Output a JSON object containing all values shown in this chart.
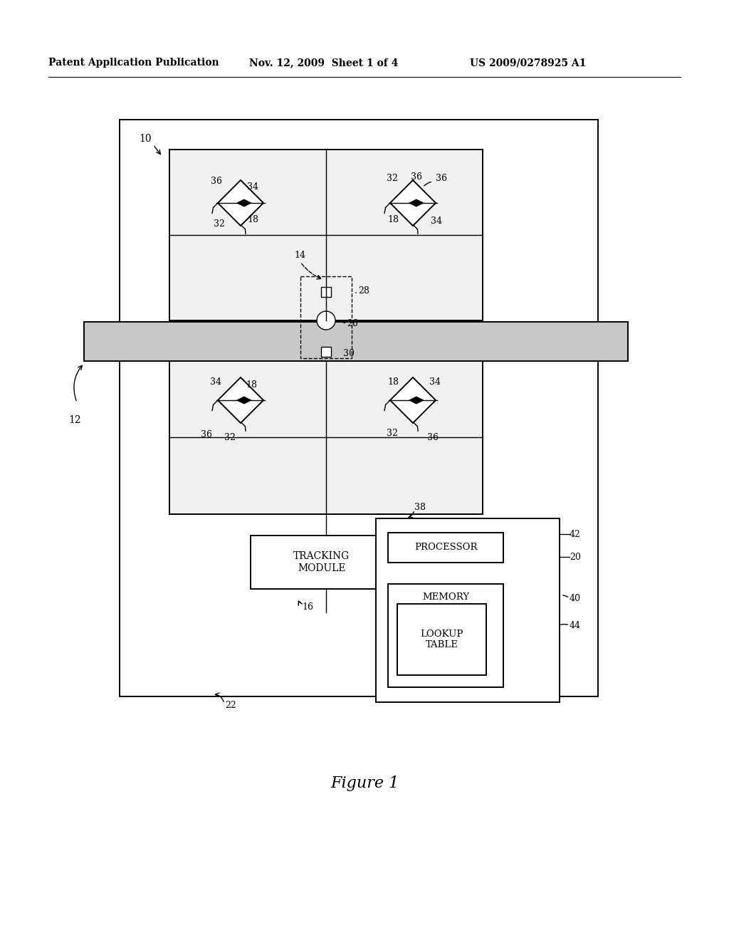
{
  "bg_color": "#ffffff",
  "header_left": "Patent Application Publication",
  "header_mid": "Nov. 12, 2009  Sheet 1 of 4",
  "header_right": "US 2009/0278925 A1",
  "figure_label": "Figure 1",
  "lw": 1.4,
  "lw_thin": 1.0
}
